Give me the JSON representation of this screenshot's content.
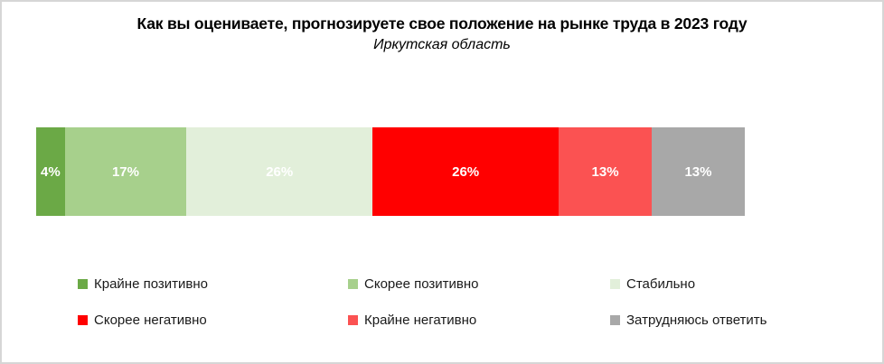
{
  "title": "Как вы оцениваете, прогнозируете свое положение на рынке труда в 2023 году",
  "subtitle": "Иркутская область",
  "chart_data": {
    "type": "bar",
    "variant": "horizontal-stacked-single-bar",
    "title": "Как вы оцениваете, прогнозируете свое положение на рынке труда в 2023 году",
    "subtitle": "Иркутская область",
    "categories": [
      "Крайне позитивно",
      "Скорее позитивно",
      "Стабильно",
      "Скорее негативно",
      "Крайне негативно",
      "Затрудняюсь ответить"
    ],
    "values": [
      4,
      17,
      26,
      26,
      13,
      13
    ],
    "data_labels": [
      "4%",
      "17%",
      "26%",
      "26%",
      "13%",
      "13%"
    ],
    "colors": [
      "#6BA946",
      "#A7D08C",
      "#E2EFDA",
      "#FF0000",
      "#FB5252",
      "#A8A8A8"
    ],
    "data_label_color": "#ffffff",
    "xlabel": "",
    "ylabel": "",
    "axis_visible": false,
    "grid": false,
    "legend_position": "bottom",
    "legend_rows": 2,
    "legend_columns": 3
  }
}
